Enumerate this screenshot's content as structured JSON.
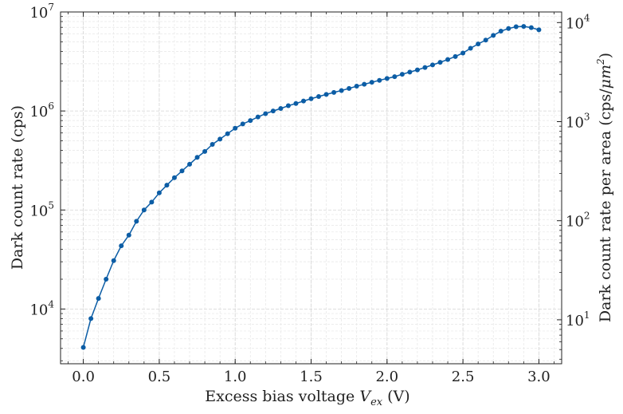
{
  "chart_data": {
    "type": "line",
    "x_scale": "linear",
    "y_scale": "log",
    "y2_scale": "log",
    "grid": true,
    "xlabel": {
      "prefix": "Excess bias voltage ",
      "var": "V",
      "sub": "ex",
      "suffix": " (V)"
    },
    "ylabel": "Dark count rate (cps)",
    "y2label": {
      "prefix": "Dark count rate per area (cps/",
      "mu": "μm",
      "sup": "2",
      "suffix": ")"
    },
    "xlim": [
      -0.15,
      3.15
    ],
    "ylim": [
      2800,
      10000000
    ],
    "y2lim": [
      3.6,
      12800
    ],
    "x_ticks": [
      {
        "value": 0.0,
        "label": "0.0"
      },
      {
        "value": 0.5,
        "label": "0.5"
      },
      {
        "value": 1.0,
        "label": "1.0"
      },
      {
        "value": 1.5,
        "label": "1.5"
      },
      {
        "value": 2.0,
        "label": "2.0"
      },
      {
        "value": 2.5,
        "label": "2.5"
      },
      {
        "value": 3.0,
        "label": "3.0"
      }
    ],
    "y_ticks": [
      {
        "value": 10000,
        "base": "10",
        "exp": "4"
      },
      {
        "value": 100000,
        "base": "10",
        "exp": "5"
      },
      {
        "value": 1000000,
        "base": "10",
        "exp": "6"
      },
      {
        "value": 10000000,
        "base": "10",
        "exp": "7"
      }
    ],
    "y2_ticks": [
      {
        "value": 10,
        "base": "10",
        "exp": "1"
      },
      {
        "value": 100,
        "base": "10",
        "exp": "2"
      },
      {
        "value": 1000,
        "base": "10",
        "exp": "3"
      },
      {
        "value": 10000,
        "base": "10",
        "exp": "4"
      }
    ],
    "series": [
      {
        "color": "#0C5DA5",
        "marker": "circle",
        "x": [
          0.0,
          0.05,
          0.1,
          0.15,
          0.2,
          0.25,
          0.3,
          0.35,
          0.4,
          0.45,
          0.5,
          0.55,
          0.6,
          0.65,
          0.7,
          0.75,
          0.8,
          0.85,
          0.9,
          0.95,
          1.0,
          1.05,
          1.1,
          1.15,
          1.2,
          1.25,
          1.3,
          1.35,
          1.4,
          1.45,
          1.5,
          1.55,
          1.6,
          1.65,
          1.7,
          1.75,
          1.8,
          1.85,
          1.9,
          1.95,
          2.0,
          2.05,
          2.1,
          2.15,
          2.2,
          2.25,
          2.3,
          2.35,
          2.4,
          2.45,
          2.5,
          2.55,
          2.6,
          2.65,
          2.7,
          2.75,
          2.8,
          2.85,
          2.9,
          2.95,
          3.0
        ],
        "y": [
          4100,
          8000,
          12800,
          20000,
          30800,
          43500,
          55700,
          77000,
          100000,
          120000,
          149000,
          178000,
          212000,
          248000,
          290000,
          340000,
          390000,
          460000,
          520000,
          590000,
          670000,
          740000,
          800000,
          870000,
          940000,
          1000000,
          1060000,
          1130000,
          1190000,
          1260000,
          1330000,
          1400000,
          1470000,
          1540000,
          1610000,
          1690000,
          1780000,
          1860000,
          1950000,
          2040000,
          2130000,
          2220000,
          2350000,
          2470000,
          2600000,
          2750000,
          2920000,
          3100000,
          3310000,
          3550000,
          3850000,
          4300000,
          4750000,
          5200000,
          5800000,
          6400000,
          6800000,
          7100000,
          7150000,
          6950000,
          6600000
        ]
      }
    ]
  }
}
